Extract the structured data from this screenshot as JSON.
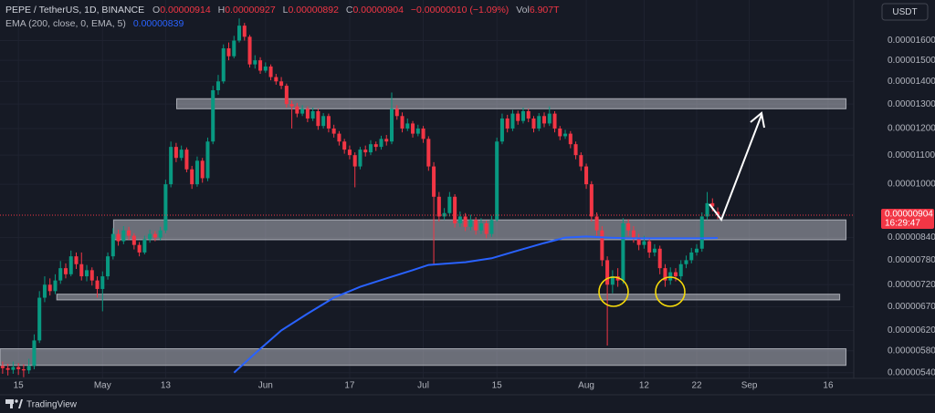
{
  "chart_data": {
    "type": "candlestick",
    "header": {
      "symbol": "PEPE / TetherUS, 1D, BINANCE",
      "open_prefix": "O",
      "high_prefix": "H",
      "low_prefix": "L",
      "close_prefix": "C",
      "change": "−0.00000010 (−1.09%)",
      "volume_prefix": "Vol",
      "volume": "6.907T"
    },
    "currency": "USDT",
    "countdown": "16:29:47",
    "brand": "TradingView",
    "log_scale": true,
    "grid": true,
    "up_color": "#089981",
    "down_color": "#f23645",
    "xlim": [
      -3.5,
      158
    ],
    "xticks": [
      {
        "value": 0,
        "label": "15"
      },
      {
        "value": 16,
        "label": "May"
      },
      {
        "value": 28,
        "label": "13"
      },
      {
        "value": 47,
        "label": "Jun"
      },
      {
        "value": 63,
        "label": "17"
      },
      {
        "value": 77,
        "label": "Jul"
      },
      {
        "value": 91,
        "label": "15"
      },
      {
        "value": 108,
        "label": "Aug"
      },
      {
        "value": 119,
        "label": "12"
      },
      {
        "value": 129,
        "label": "22"
      },
      {
        "value": 139,
        "label": "Sep"
      },
      {
        "value": 154,
        "label": "16"
      }
    ],
    "ylim": [
      5.3e-06,
      1.8e-05
    ],
    "yticks": [
      {
        "value": 1.6e-05,
        "label": "0.00001600"
      },
      {
        "value": 1.5e-05,
        "label": "0.00001500"
      },
      {
        "value": 1.4e-05,
        "label": "0.00001400"
      },
      {
        "value": 1.3e-05,
        "label": "0.00001300"
      },
      {
        "value": 1.2e-05,
        "label": "0.00001200"
      },
      {
        "value": 1.1e-05,
        "label": "0.00001100"
      },
      {
        "value": 1e-05,
        "label": "0.00001000"
      },
      {
        "value": 8.4e-06,
        "label": "0.00000840"
      },
      {
        "value": 7.8e-06,
        "label": "0.00000780"
      },
      {
        "value": 7.2e-06,
        "label": "0.00000720"
      },
      {
        "value": 6.7e-06,
        "label": "0.00000670"
      },
      {
        "value": 6.2e-06,
        "label": "0.00000620"
      },
      {
        "value": 5.8e-06,
        "label": "0.00000580"
      },
      {
        "value": 5.4e-06,
        "label": "0.00000540"
      }
    ],
    "x": [
      -3,
      -2,
      -1,
      0,
      1,
      2,
      3,
      4,
      5,
      6,
      7,
      8,
      9,
      10,
      11,
      12,
      13,
      14,
      15,
      16,
      17,
      18,
      19,
      20,
      21,
      22,
      23,
      24,
      25,
      26,
      27,
      28,
      29,
      30,
      31,
      32,
      33,
      34,
      35,
      36,
      37,
      38,
      39,
      40,
      41,
      42,
      43,
      44,
      45,
      46,
      47,
      48,
      49,
      50,
      51,
      52,
      53,
      54,
      55,
      56,
      57,
      58,
      59,
      60,
      61,
      62,
      63,
      64,
      65,
      66,
      67,
      68,
      69,
      70,
      71,
      72,
      73,
      74,
      75,
      76,
      77,
      78,
      79,
      80,
      81,
      82,
      83,
      84,
      85,
      86,
      87,
      88,
      89,
      90,
      91,
      92,
      93,
      94,
      95,
      96,
      97,
      98,
      99,
      100,
      101,
      102,
      103,
      104,
      105,
      106,
      107,
      108,
      109,
      110,
      111,
      112,
      113,
      114,
      115,
      116,
      117,
      118,
      119,
      120,
      121,
      122,
      123,
      124,
      125,
      126,
      127,
      128,
      129,
      130,
      131,
      132,
      133
    ],
    "open": [
      5.52e-06,
      5.48e-06,
      5.45e-06,
      5.5e-06,
      5.46e-06,
      5.44e-06,
      5.52e-06,
      6e-06,
      6.9e-06,
      7.2e-06,
      7.05e-06,
      7.3e-06,
      7.6e-06,
      7.45e-06,
      7.9e-06,
      7.7e-06,
      7.4e-06,
      7.55e-06,
      7.3e-06,
      7.1e-06,
      7.4e-06,
      7.9e-06,
      8.5e-06,
      8.3e-06,
      8.6e-06,
      8.45e-06,
      8.2e-06,
      8e-06,
      8.35e-06,
      8.5e-06,
      8.4e-06,
      8.6e-06,
      1e-05,
      1.13e-05,
      1.09e-05,
      1.12e-05,
      1.05e-05,
      1e-05,
      1.08e-05,
      1.02e-05,
      1.15e-05,
      1.36e-05,
      1.4e-05,
      1.56e-05,
      1.52e-05,
      1.6e-05,
      1.68e-05,
      1.62e-05,
      1.48e-05,
      1.5e-05,
      1.45e-05,
      1.47e-05,
      1.42e-05,
      1.4e-05,
      1.38e-05,
      1.3e-05,
      1.29e-05,
      1.26e-05,
      1.28e-05,
      1.24e-05,
      1.27e-05,
      1.21e-05,
      1.25e-05,
      1.2e-05,
      1.18e-05,
      1.15e-05,
      1.12e-05,
      1.1e-05,
      1.06e-05,
      1.12e-05,
      1.11e-05,
      1.14e-05,
      1.13e-05,
      1.16e-05,
      1.15e-05,
      1.28e-05,
      1.25e-05,
      1.2e-05,
      1.22e-05,
      1.18e-05,
      1.2e-05,
      1.16e-05,
      1.06e-05,
      9.6e-06,
      9e-06,
      9.1e-06,
      9.6e-06,
      8.8e-06,
      9e-06,
      8.7e-06,
      8.9e-06,
      8.6e-06,
      8.8e-06,
      8.5e-06,
      8.9e-06,
      1.15e-05,
      1.24e-05,
      1.2e-05,
      1.26e-05,
      1.23e-05,
      1.27e-05,
      1.24e-05,
      1.2e-05,
      1.25e-05,
      1.22e-05,
      1.26e-05,
      1.2e-05,
      1.17e-05,
      1.18e-05,
      1.14e-05,
      1.1e-05,
      1.06e-05,
      1e-05,
      9e-06,
      8.6e-06,
      7.8e-06,
      7.2e-06,
      7.4e-06,
      7.3e-06,
      8.8e-06,
      8.6e-06,
      8.4e-06,
      8.2e-06,
      8.3e-06,
      8e-06,
      8.1e-06,
      7.6e-06,
      7.3e-06,
      7.5e-06,
      7.4e-06,
      7.7e-06,
      7.8e-06,
      8e-06,
      8.1e-06,
      9e-06,
      9.4e-06,
      9.14e-06
    ],
    "high": [
      5.6e-06,
      5.56e-06,
      5.6e-06,
      5.57e-06,
      5.55e-06,
      5.65e-06,
      6.12e-06,
      7.05e-06,
      7.4e-06,
      7.35e-06,
      7.45e-06,
      7.78e-06,
      7.72e-06,
      8.05e-06,
      8e-06,
      8e-06,
      7.68e-06,
      7.62e-06,
      7.4e-06,
      7.52e-06,
      8e-06,
      8.66e-06,
      8.62e-06,
      8.72e-06,
      8.7e-06,
      8.52e-06,
      8.28e-06,
      8.45e-06,
      8.62e-06,
      8.58e-06,
      8.7e-06,
      1.015e-05,
      1.15e-05,
      1.145e-05,
      1.135e-05,
      1.128e-05,
      1.062e-05,
      1.095e-05,
      1.09e-05,
      1.165e-05,
      1.38e-05,
      1.43e-05,
      1.58e-05,
      1.59e-05,
      1.625e-05,
      1.72e-05,
      1.695e-05,
      1.63e-05,
      1.525e-05,
      1.515e-05,
      1.49e-05,
      1.48e-05,
      1.435e-05,
      1.42e-05,
      1.39e-05,
      1.315e-05,
      1.305e-05,
      1.295e-05,
      1.29e-05,
      1.285e-05,
      1.28e-05,
      1.262e-05,
      1.26e-05,
      1.215e-05,
      1.19e-05,
      1.16e-05,
      1.135e-05,
      1.11e-05,
      1.13e-05,
      1.135e-05,
      1.155e-05,
      1.15e-05,
      1.172e-05,
      1.175e-05,
      1.35e-05,
      1.295e-05,
      1.265e-05,
      1.24e-05,
      1.23e-05,
      1.215e-05,
      1.21e-05,
      1.17e-05,
      1.075e-05,
      9.75e-06,
      9.25e-06,
      9.75e-06,
      9.68e-06,
      9.15e-06,
      9.1e-06,
      9.05e-06,
      8.98e-06,
      8.95e-06,
      8.88e-06,
      9.02e-06,
      1.165e-05,
      1.26e-05,
      1.255e-05,
      1.275e-05,
      1.272e-05,
      1.285e-05,
      1.28e-05,
      1.25e-05,
      1.262e-05,
      1.265e-05,
      1.29e-05,
      1.27e-05,
      1.21e-05,
      1.195e-05,
      1.19e-05,
      1.15e-05,
      1.11e-05,
      1.07e-05,
      1.01e-05,
      9.12e-06,
      8.72e-06,
      7.9e-06,
      7.55e-06,
      7.6e-06,
      8.95e-06,
      8.92e-06,
      8.72e-06,
      8.5e-06,
      8.45e-06,
      8.38e-06,
      8.22e-06,
      8.18e-06,
      7.7e-06,
      7.62e-06,
      7.6e-06,
      7.8e-06,
      7.92e-06,
      8.12e-06,
      8.22e-06,
      9.12e-06,
      9.75e-06,
      9.55e-06,
      9.27e-06
    ],
    "low": [
      5.38e-06,
      5.35e-06,
      5.38e-06,
      5.36e-06,
      5.32e-06,
      5.38e-06,
      5.46e-06,
      5.95e-06,
      6.8e-06,
      6.95e-06,
      6.98e-06,
      7.22e-06,
      7.35e-06,
      7.4e-06,
      7.58e-06,
      7.3e-06,
      7.28e-06,
      7.18e-06,
      6.9e-06,
      6.6e-06,
      7.32e-06,
      7.82e-06,
      8.18e-06,
      8.22e-06,
      8.34e-06,
      8.08e-06,
      7.9e-06,
      7.95e-06,
      8.26e-06,
      8.3e-06,
      8.32e-06,
      8.52e-06,
      9.9e-06,
      1.075e-05,
      1.08e-05,
      1.04e-05,
      9.85e-06,
      9.92e-06,
      1.005e-05,
      1.01e-05,
      1.14e-05,
      1.34e-05,
      1.39e-05,
      1.5e-05,
      1.51e-05,
      1.59e-05,
      1.6e-05,
      1.465e-05,
      1.46e-05,
      1.435e-05,
      1.44e-05,
      1.405e-05,
      1.385e-05,
      1.365e-05,
      1.285e-05,
      1.2e-05,
      1.245e-05,
      1.25e-05,
      1.225e-05,
      1.23e-05,
      1.195e-05,
      1.2e-05,
      1.185e-05,
      1.165e-05,
      1.135e-05,
      1.105e-05,
      1.085e-05,
      9.9e-06,
      1.05e-05,
      1.095e-05,
      1.1e-05,
      1.115e-05,
      1.12e-05,
      1.135e-05,
      1.14e-05,
      1.235e-05,
      1.185e-05,
      1.19e-05,
      1.165e-05,
      1.17e-05,
      1.145e-05,
      1.045e-05,
      7.7e-06,
      8.85e-06,
      8.9e-06,
      9e-06,
      8.68e-06,
      8.7e-06,
      8.58e-06,
      8.6e-06,
      8.48e-06,
      8.5e-06,
      8.38e-06,
      8.42e-06,
      8.85e-06,
      1.14e-05,
      1.185e-05,
      1.19e-05,
      1.215e-05,
      1.22e-05,
      1.225e-05,
      1.185e-05,
      1.19e-05,
      1.205e-05,
      1.21e-05,
      1.185e-05,
      1.155e-05,
      1.16e-05,
      1.125e-05,
      1.085e-05,
      1.045e-05,
      9.85e-06,
      8.85e-06,
      8.45e-06,
      7.65e-06,
      5.9e-06,
      7e-06,
      7.15e-06,
      7.22e-06,
      8.45e-06,
      8.26e-06,
      8.06e-06,
      8.1e-06,
      7.86e-06,
      7.9e-06,
      7.45e-06,
      7.15e-06,
      7.2e-06,
      7.28e-06,
      7.32e-06,
      7.6e-06,
      7.72e-06,
      7.92e-06,
      8.02e-06,
      8.9e-06,
      9.15e-06,
      8.92e-06
    ],
    "close": [
      5.48e-06,
      5.45e-06,
      5.5e-06,
      5.46e-06,
      5.44e-06,
      5.52e-06,
      6e-06,
      6.9e-06,
      7.2e-06,
      7.05e-06,
      7.3e-06,
      7.6e-06,
      7.45e-06,
      7.9e-06,
      7.7e-06,
      7.4e-06,
      7.55e-06,
      7.3e-06,
      7.1e-06,
      7.4e-06,
      7.9e-06,
      8.5e-06,
      8.3e-06,
      8.6e-06,
      8.45e-06,
      8.2e-06,
      8e-06,
      8.35e-06,
      8.5e-06,
      8.4e-06,
      8.6e-06,
      1e-05,
      1.13e-05,
      1.09e-05,
      1.12e-05,
      1.05e-05,
      1e-05,
      1.08e-05,
      1.02e-05,
      1.15e-05,
      1.36e-05,
      1.4e-05,
      1.56e-05,
      1.52e-05,
      1.6e-05,
      1.68e-05,
      1.62e-05,
      1.48e-05,
      1.5e-05,
      1.45e-05,
      1.47e-05,
      1.42e-05,
      1.4e-05,
      1.38e-05,
      1.3e-05,
      1.29e-05,
      1.26e-05,
      1.28e-05,
      1.24e-05,
      1.27e-05,
      1.21e-05,
      1.25e-05,
      1.2e-05,
      1.18e-05,
      1.15e-05,
      1.12e-05,
      1.1e-05,
      1.06e-05,
      1.12e-05,
      1.11e-05,
      1.14e-05,
      1.13e-05,
      1.16e-05,
      1.15e-05,
      1.28e-05,
      1.25e-05,
      1.2e-05,
      1.22e-05,
      1.18e-05,
      1.2e-05,
      1.16e-05,
      1.06e-05,
      9.6e-06,
      9e-06,
      9.1e-06,
      9.6e-06,
      8.8e-06,
      9e-06,
      8.7e-06,
      8.9e-06,
      8.6e-06,
      8.8e-06,
      8.5e-06,
      8.9e-06,
      1.15e-05,
      1.24e-05,
      1.2e-05,
      1.26e-05,
      1.23e-05,
      1.27e-05,
      1.24e-05,
      1.2e-05,
      1.25e-05,
      1.22e-05,
      1.26e-05,
      1.2e-05,
      1.17e-05,
      1.18e-05,
      1.14e-05,
      1.1e-05,
      1.06e-05,
      1e-05,
      9e-06,
      8.6e-06,
      7.8e-06,
      7.2e-06,
      7.4e-06,
      7.3e-06,
      8.8e-06,
      8.6e-06,
      8.4e-06,
      8.2e-06,
      8.3e-06,
      8e-06,
      8.1e-06,
      7.6e-06,
      7.3e-06,
      7.5e-06,
      7.4e-06,
      7.7e-06,
      7.8e-06,
      8e-06,
      8.1e-06,
      9e-06,
      9.4e-06,
      9.3e-06,
      9.04e-06
    ],
    "ema": {
      "name": "EMA (200, close, 0, EMA, 5)",
      "color": "#2962ff",
      "x": [
        41,
        45,
        50,
        55,
        60,
        65,
        70,
        75,
        78,
        85,
        90,
        95,
        100,
        104,
        108,
        112,
        116,
        120,
        125,
        130,
        133
      ],
      "values": [
        5.4e-06,
        5.75e-06,
        6.2e-06,
        6.55e-06,
        6.9e-06,
        7.15e-06,
        7.35e-06,
        7.55e-06,
        7.68e-06,
        7.75e-06,
        7.85e-06,
        8.05e-06,
        8.25e-06,
        8.4e-06,
        8.43e-06,
        8.4e-06,
        8.38e-06,
        8.38e-06,
        8.38e-06,
        8.38e-06,
        8.39e-06
      ]
    },
    "zones": [
      {
        "range": [
          1.28e-05,
          1.323e-05
        ],
        "x": [
          30.1,
          157.4
        ]
      },
      {
        "range": [
          8.34e-06,
          8.9e-06
        ],
        "x": [
          18.1,
          157.4
        ]
      },
      {
        "range": [
          6.85e-06,
          6.98e-06
        ],
        "x": [
          7.3,
          156.2
        ]
      },
      {
        "range": [
          5.53e-06,
          5.84e-06
        ],
        "x": [
          -3.5,
          157.4
        ]
      }
    ]
  }
}
